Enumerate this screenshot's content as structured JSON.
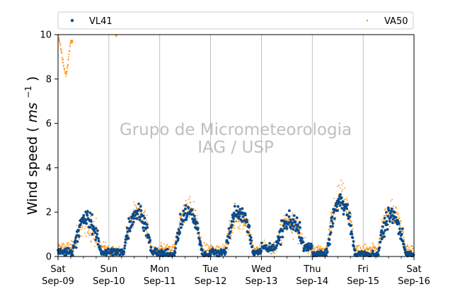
{
  "chart_data": {
    "type": "scatter",
    "title": "",
    "xlabel": "",
    "ylabel": "Wind speed",
    "ylabel_unit": "ms",
    "ylabel_unit_exp": "−1",
    "ylim": [
      0,
      10
    ],
    "y_ticks": [
      "0",
      "2",
      "4",
      "6",
      "8",
      "10"
    ],
    "x_ticks": [
      {
        "day": "Sat",
        "date": "Sep-09"
      },
      {
        "day": "Sun",
        "date": "Sep-10"
      },
      {
        "day": "Mon",
        "date": "Sep-11"
      },
      {
        "day": "Tue",
        "date": "Sep-12"
      },
      {
        "day": "Wed",
        "date": "Sep-13"
      },
      {
        "day": "Thu",
        "date": "Sep-14"
      },
      {
        "day": "Fri",
        "date": "Sep-15"
      },
      {
        "day": "Sat",
        "date": "Sep-16"
      }
    ],
    "grid": "vertical at day boundaries",
    "legend_position": "top, above plot",
    "watermark": [
      "Grupo de Micrometeorologia",
      "IAG / USP"
    ],
    "series": [
      {
        "name": "VL41",
        "color": "#0b4b8a",
        "marker": "dot",
        "daily_profile": [
          {
            "day": "Sep-09",
            "night": 0.2,
            "day_peak": 1.7
          },
          {
            "day": "Sep-10",
            "night": 0.2,
            "day_peak": 2.0
          },
          {
            "day": "Sep-11",
            "night": 0.1,
            "day_peak": 2.0
          },
          {
            "day": "Sep-12",
            "night": 0.2,
            "day_peak": 2.0
          },
          {
            "day": "Sep-13",
            "night": 0.4,
            "day_peak": 1.6
          },
          {
            "day": "Sep-14",
            "night": 0.1,
            "day_peak": 2.5
          },
          {
            "day": "Sep-15",
            "night": 0.1,
            "day_peak": 1.8
          },
          {
            "day": "Sep-16",
            "night": 0.4,
            "day_peak": 0.6
          }
        ]
      },
      {
        "name": "VA50",
        "color": "#ff8c00",
        "marker": "small dot",
        "daily_profile": [
          {
            "day": "Sep-09",
            "night": 0.4,
            "day_peak": 1.4
          },
          {
            "day": "Sep-10",
            "night": 0.2,
            "day_peak": 2.0
          },
          {
            "day": "Sep-11",
            "night": 0.3,
            "day_peak": 2.2
          },
          {
            "day": "Sep-12",
            "night": 0.3,
            "day_peak": 1.8
          },
          {
            "day": "Sep-13",
            "night": 0.4,
            "day_peak": 1.6
          },
          {
            "day": "Sep-14",
            "night": 0.3,
            "day_peak": 2.8
          },
          {
            "day": "Sep-15",
            "night": 0.3,
            "day_peak": 2.0
          },
          {
            "day": "Sep-16",
            "night": 0.3,
            "day_peak": 0.5
          }
        ],
        "early_high_values": [
          {
            "t": "Sep-09 00:00",
            "y": 10.0
          },
          {
            "t": "Sep-09 01:00",
            "y": 9.6
          },
          {
            "t": "Sep-09 02:00",
            "y": 9.0
          },
          {
            "t": "Sep-09 03:00",
            "y": 8.4
          },
          {
            "t": "Sep-09 04:00",
            "y": 8.2
          },
          {
            "t": "Sep-09 05:00",
            "y": 9.0
          },
          {
            "t": "Sep-09 06:00",
            "y": 9.7
          },
          {
            "t": "Sep-10 03:00",
            "y": 10.0
          }
        ]
      }
    ]
  }
}
